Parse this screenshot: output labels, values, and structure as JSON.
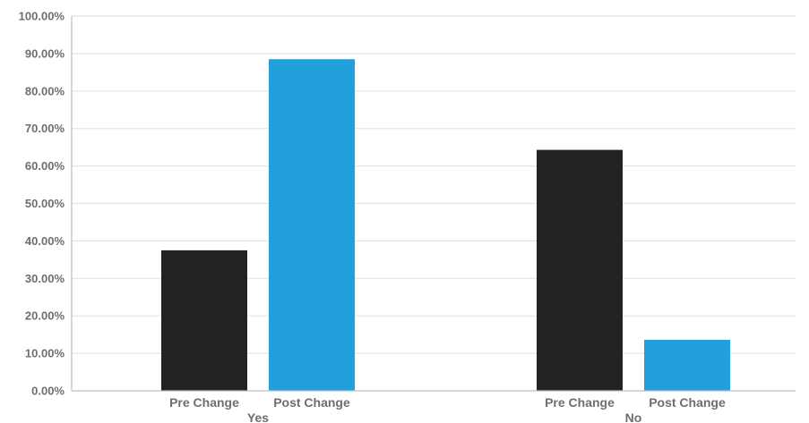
{
  "chart_data": {
    "type": "bar",
    "title": "",
    "xlabel": "",
    "ylabel": "",
    "ylim": [
      0,
      100
    ],
    "yticks": [
      "0.00%",
      "10.00%",
      "20.00%",
      "30.00%",
      "40.00%",
      "50.00%",
      "60.00%",
      "70.00%",
      "80.00%",
      "90.00%",
      "100.00%"
    ],
    "grid": true,
    "legend": "none",
    "groups": [
      {
        "label": "Yes",
        "bars": [
          {
            "label": "Pre Change",
            "value": 37.5,
            "color": "#222222"
          },
          {
            "label": "Post Change",
            "value": 88.5,
            "color": "#22a0dc"
          }
        ]
      },
      {
        "label": "No",
        "bars": [
          {
            "label": "Pre Change",
            "value": 64.3,
            "color": "#222222"
          },
          {
            "label": "Post Change",
            "value": 13.6,
            "color": "#22a0dc"
          }
        ]
      }
    ]
  }
}
